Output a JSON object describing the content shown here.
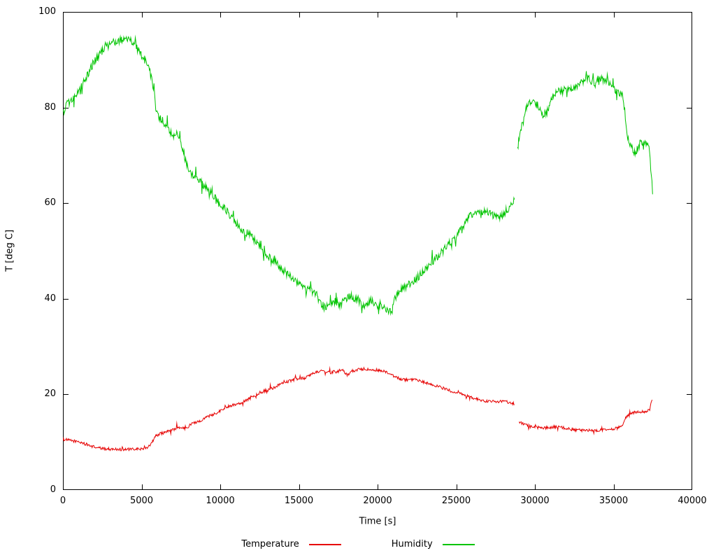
{
  "chart_data": {
    "type": "line",
    "title": "",
    "xlabel": "Time [s]",
    "ylabel": "T [deg C]",
    "xlim": [
      0,
      40000
    ],
    "ylim": [
      0,
      100
    ],
    "xticks": [
      0,
      5000,
      10000,
      15000,
      20000,
      25000,
      30000,
      35000,
      40000
    ],
    "yticks": [
      0,
      20,
      40,
      60,
      80,
      100
    ],
    "grid": false,
    "legend_position": "bottom-center",
    "background": "#ffffff",
    "axis_color": "#000000",
    "series": [
      {
        "name": "Temperature",
        "color": "#e60000",
        "noise": 0.3,
        "segments": [
          [
            [
              0,
              10.6
            ],
            [
              400,
              10.4
            ],
            [
              800,
              10.2
            ],
            [
              1200,
              9.9
            ],
            [
              1600,
              9.4
            ],
            [
              2000,
              9.0
            ],
            [
              2400,
              8.7
            ],
            [
              2800,
              8.6
            ],
            [
              3600,
              8.5
            ],
            [
              4400,
              8.5
            ],
            [
              5000,
              8.6
            ],
            [
              5400,
              9.0
            ],
            [
              5700,
              10.2
            ],
            [
              5900,
              11.3
            ],
            [
              6200,
              11.8
            ],
            [
              6600,
              12.2
            ],
            [
              7000,
              12.6
            ],
            [
              7200,
              12.9
            ],
            [
              7600,
              13.0
            ],
            [
              8000,
              13.3
            ],
            [
              8200,
              14.0
            ],
            [
              8600,
              14.3
            ],
            [
              9000,
              15.0
            ],
            [
              9400,
              15.6
            ],
            [
              9800,
              16.2
            ],
            [
              10200,
              17.0
            ],
            [
              10600,
              17.6
            ],
            [
              11000,
              18.0
            ],
            [
              11400,
              18.3
            ],
            [
              11800,
              19.0
            ],
            [
              12200,
              19.8
            ],
            [
              12600,
              20.5
            ],
            [
              13000,
              20.9
            ],
            [
              13400,
              21.4
            ],
            [
              13800,
              22.1
            ],
            [
              14200,
              22.6
            ],
            [
              14600,
              23.0
            ],
            [
              15000,
              23.4
            ],
            [
              15400,
              23.4
            ],
            [
              15800,
              24.2
            ],
            [
              16200,
              24.8
            ],
            [
              16600,
              24.9
            ],
            [
              17000,
              24.5
            ],
            [
              17400,
              24.9
            ],
            [
              17800,
              25.0
            ],
            [
              18100,
              24.0
            ],
            [
              18400,
              24.9
            ],
            [
              18800,
              25.2
            ],
            [
              19200,
              25.4
            ],
            [
              19600,
              25.0
            ],
            [
              20000,
              25.1
            ],
            [
              20400,
              24.8
            ],
            [
              20800,
              24.2
            ],
            [
              21200,
              23.5
            ],
            [
              21600,
              23.1
            ],
            [
              22000,
              23.0
            ],
            [
              22400,
              23.0
            ],
            [
              22800,
              22.7
            ],
            [
              23200,
              22.3
            ],
            [
              23600,
              21.9
            ],
            [
              24000,
              21.5
            ],
            [
              24400,
              21.0
            ],
            [
              24800,
              20.6
            ],
            [
              25200,
              20.2
            ],
            [
              25600,
              19.8
            ],
            [
              26000,
              19.3
            ],
            [
              26400,
              18.9
            ],
            [
              26800,
              18.6
            ],
            [
              27200,
              18.5
            ],
            [
              27600,
              18.5
            ],
            [
              28000,
              18.6
            ],
            [
              28400,
              18.3
            ],
            [
              28700,
              18.0
            ]
          ],
          [
            [
              29000,
              14.3
            ],
            [
              29300,
              13.8
            ],
            [
              29600,
              13.4
            ],
            [
              30000,
              13.1
            ],
            [
              30400,
              13.0
            ],
            [
              30800,
              13.0
            ],
            [
              31200,
              13.2
            ],
            [
              31600,
              13.1
            ],
            [
              32000,
              12.9
            ],
            [
              32400,
              12.6
            ],
            [
              32800,
              12.5
            ],
            [
              33200,
              12.5
            ],
            [
              33600,
              12.4
            ],
            [
              34000,
              12.5
            ],
            [
              34400,
              12.6
            ],
            [
              34800,
              12.7
            ],
            [
              35200,
              12.9
            ],
            [
              35500,
              13.3
            ],
            [
              35800,
              15.2
            ],
            [
              36100,
              15.9
            ],
            [
              36400,
              16.3
            ],
            [
              36800,
              16.4
            ],
            [
              37100,
              16.4
            ],
            [
              37300,
              16.8
            ],
            [
              37450,
              19.0
            ]
          ]
        ]
      },
      {
        "name": "Humidity",
        "color": "#00c400",
        "noise": 0.8,
        "segments": [
          [
            [
              0,
              78.5
            ],
            [
              200,
              80.5
            ],
            [
              500,
              81.5
            ],
            [
              800,
              82.5
            ],
            [
              1100,
              84.0
            ],
            [
              1500,
              86.5
            ],
            [
              1900,
              89.0
            ],
            [
              2300,
              91.0
            ],
            [
              2700,
              92.5
            ],
            [
              3100,
              93.5
            ],
            [
              3500,
              94.0
            ],
            [
              3900,
              94.5
            ],
            [
              4200,
              94.2
            ],
            [
              4600,
              93.0
            ],
            [
              4900,
              91.5
            ],
            [
              5200,
              90.0
            ],
            [
              5500,
              88.0
            ],
            [
              5750,
              84.0
            ],
            [
              5900,
              80.0
            ],
            [
              6100,
              78.0
            ],
            [
              6400,
              77.0
            ],
            [
              6700,
              75.5
            ],
            [
              7000,
              73.5
            ],
            [
              7200,
              74.5
            ],
            [
              7400,
              73.5
            ],
            [
              7600,
              71.5
            ],
            [
              7800,
              69.0
            ],
            [
              8000,
              66.5
            ],
            [
              8300,
              65.5
            ],
            [
              8700,
              65.0
            ],
            [
              9000,
              63.5
            ],
            [
              9300,
              62.5
            ],
            [
              9700,
              61.0
            ],
            [
              10000,
              60.0
            ],
            [
              10400,
              58.5
            ],
            [
              10800,
              56.5
            ],
            [
              11200,
              55.0
            ],
            [
              11600,
              54.0
            ],
            [
              12000,
              53.0
            ],
            [
              12400,
              51.5
            ],
            [
              12800,
              49.5
            ],
            [
              13200,
              48.5
            ],
            [
              13600,
              47.5
            ],
            [
              14000,
              46.0
            ],
            [
              14400,
              44.8
            ],
            [
              14800,
              43.8
            ],
            [
              15200,
              42.8
            ],
            [
              15600,
              41.8
            ],
            [
              16000,
              41.5
            ],
            [
              16300,
              39.5
            ],
            [
              16600,
              38.3
            ],
            [
              17000,
              38.5
            ],
            [
              17300,
              39.6
            ],
            [
              17600,
              38.8
            ],
            [
              18000,
              40.0
            ],
            [
              18300,
              40.6
            ],
            [
              18700,
              39.8
            ],
            [
              19000,
              39.0
            ],
            [
              19300,
              38.4
            ],
            [
              19600,
              39.8
            ],
            [
              19900,
              38.6
            ],
            [
              20200,
              38.8
            ],
            [
              20600,
              37.8
            ],
            [
              20900,
              37.0
            ],
            [
              21100,
              40.2
            ],
            [
              21400,
              41.6
            ],
            [
              21800,
              42.6
            ],
            [
              22200,
              43.4
            ],
            [
              22600,
              44.6
            ],
            [
              23000,
              46.0
            ],
            [
              23400,
              47.4
            ],
            [
              23800,
              48.8
            ],
            [
              24200,
              50.2
            ],
            [
              24600,
              51.6
            ],
            [
              25000,
              53.2
            ],
            [
              25400,
              55.0
            ],
            [
              25800,
              57.0
            ],
            [
              26100,
              58.0
            ],
            [
              26500,
              58.4
            ],
            [
              26900,
              58.2
            ],
            [
              27300,
              57.4
            ],
            [
              27700,
              57.0
            ],
            [
              28000,
              57.8
            ],
            [
              28300,
              58.8
            ],
            [
              28700,
              60.5
            ]
          ],
          [
            [
              28900,
              71.0
            ],
            [
              29100,
              75.5
            ],
            [
              29300,
              78.5
            ],
            [
              29500,
              80.5
            ],
            [
              29700,
              81.2
            ],
            [
              30000,
              81.0
            ],
            [
              30300,
              80.0
            ],
            [
              30500,
              78.6
            ],
            [
              30800,
              79.2
            ],
            [
              31100,
              82.0
            ],
            [
              31400,
              83.2
            ],
            [
              31800,
              83.6
            ],
            [
              32100,
              84.0
            ],
            [
              32400,
              83.6
            ],
            [
              32800,
              84.6
            ],
            [
              33100,
              85.6
            ],
            [
              33400,
              86.0
            ],
            [
              33700,
              85.2
            ],
            [
              34000,
              85.6
            ],
            [
              34300,
              86.0
            ],
            [
              34600,
              85.8
            ],
            [
              34900,
              84.6
            ],
            [
              35100,
              83.4
            ],
            [
              35400,
              82.6
            ],
            [
              35600,
              82.4
            ],
            [
              35750,
              78.0
            ],
            [
              35900,
              74.0
            ],
            [
              36100,
              72.0
            ],
            [
              36300,
              70.6
            ],
            [
              36500,
              71.2
            ],
            [
              36700,
              72.6
            ],
            [
              36900,
              72.0
            ],
            [
              37100,
              73.0
            ],
            [
              37250,
              72.0
            ],
            [
              37400,
              66.0
            ],
            [
              37480,
              62.0
            ]
          ]
        ]
      }
    ]
  }
}
